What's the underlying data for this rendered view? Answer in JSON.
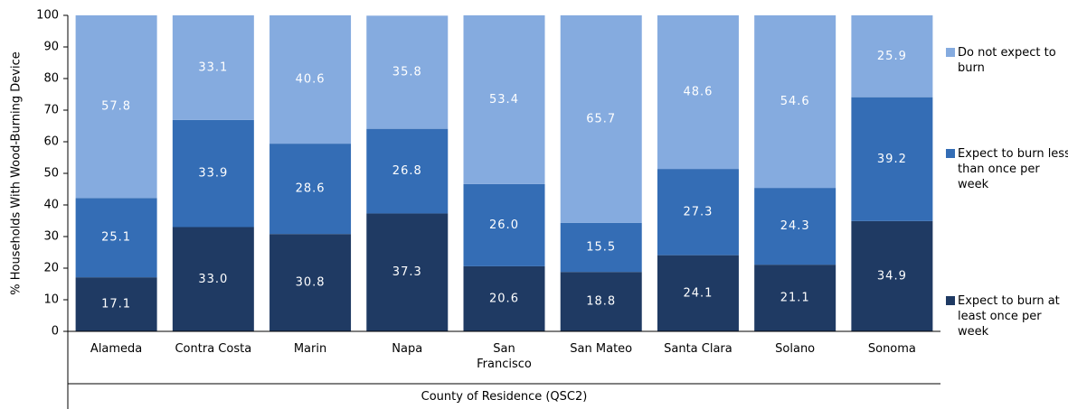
{
  "chart_data": {
    "type": "stacked-bar",
    "categories": [
      "Alameda",
      "Contra Costa",
      "Marin",
      "Napa",
      "San Francisco",
      "San Mateo",
      "Santa Clara",
      "Solano",
      "Sonoma"
    ],
    "series": [
      {
        "name": "Expect to burn at least once per week",
        "color": "#1f3a63",
        "values": [
          17.1,
          33.0,
          30.8,
          37.3,
          20.6,
          18.8,
          24.1,
          21.1,
          34.9
        ],
        "value_labels": [
          "17.1",
          "33.0",
          "30.8",
          "37.3",
          "20.6",
          "18.8",
          "24.1",
          "21.1",
          "34.9"
        ]
      },
      {
        "name": "Expect to burn less than once per week",
        "color": "#346db5",
        "values": [
          25.1,
          33.9,
          28.6,
          26.8,
          26.0,
          15.5,
          27.3,
          24.3,
          39.2
        ],
        "value_labels": [
          "25.1",
          "33.9",
          "28.6",
          "26.8",
          "26.0",
          "15.5",
          "27.3",
          "24.3",
          "39.2"
        ]
      },
      {
        "name": "Do not expect to burn",
        "color": "#85abdf",
        "values": [
          57.8,
          33.1,
          40.6,
          35.8,
          53.4,
          65.7,
          48.6,
          54.6,
          25.9
        ],
        "value_labels": [
          "57.8",
          "33.1",
          "40.6",
          "35.8",
          "53.4",
          "65.7",
          "48.6",
          "54.6",
          "25.9"
        ]
      }
    ],
    "y_label": "% Households With Wood-Burning Device",
    "x_label": "County of Residence (QSC2)",
    "ylim": [
      0,
      100
    ],
    "yticks": [
      0,
      10,
      20,
      30,
      40,
      50,
      60,
      70,
      80,
      90,
      100
    ],
    "legend": "right"
  }
}
